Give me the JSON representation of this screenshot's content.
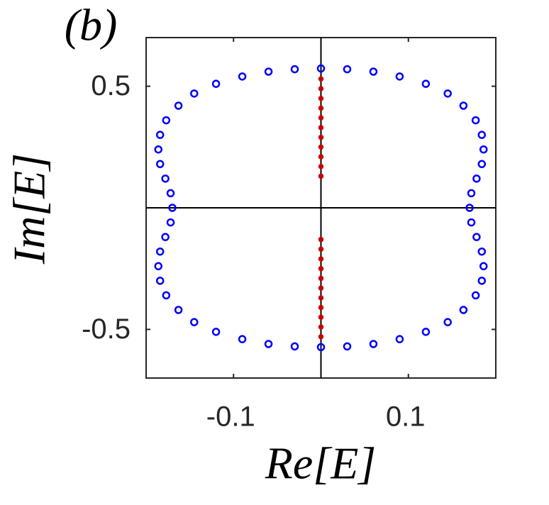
{
  "chart_data": {
    "type": "scatter",
    "label": "(b)",
    "x_label": "Re[E]",
    "y_label": "Im[E]",
    "xlim": [
      -0.2,
      0.2
    ],
    "ylim": [
      -0.7,
      0.7
    ],
    "xticks": [
      -0.1,
      0.1
    ],
    "yticks": [
      -0.5,
      0.5
    ],
    "zero_lines": true,
    "series": [
      {
        "color": "#0000ff",
        "marker": "open",
        "x": [
          0,
          0.03,
          0.06,
          0.09,
          0.12,
          0.145,
          0.163,
          0.177,
          0.184,
          0.186,
          0.184,
          0.178,
          0.172,
          0.17,
          0.172,
          0.178,
          0.184,
          0.186,
          0.184,
          0.177,
          0.163,
          0.145,
          0.12,
          0.09,
          0.06,
          0.03,
          0,
          -0.03,
          -0.06,
          -0.09,
          -0.12,
          -0.145,
          -0.163,
          -0.177,
          -0.184,
          -0.186,
          -0.184,
          -0.178,
          -0.172,
          -0.17,
          -0.172,
          -0.178,
          -0.184,
          -0.186,
          -0.184,
          -0.177,
          -0.163,
          -0.145,
          -0.12,
          -0.09,
          -0.06,
          -0.03
        ],
        "y": [
          0.573,
          0.57,
          0.56,
          0.54,
          0.51,
          0.47,
          0.42,
          0.36,
          0.3,
          0.24,
          0.18,
          0.12,
          0.06,
          0,
          -0.06,
          -0.12,
          -0.18,
          -0.24,
          -0.3,
          -0.36,
          -0.42,
          -0.47,
          -0.51,
          -0.54,
          -0.56,
          -0.57,
          -0.573,
          -0.57,
          -0.56,
          -0.54,
          -0.51,
          -0.47,
          -0.42,
          -0.36,
          -0.3,
          -0.24,
          -0.18,
          -0.12,
          -0.06,
          0,
          0.06,
          0.12,
          0.18,
          0.24,
          0.3,
          0.36,
          0.42,
          0.47,
          0.51,
          0.54,
          0.56,
          0.57
        ]
      },
      {
        "color": "#cc0000",
        "marker": "filled",
        "x": [
          0,
          0,
          0,
          0,
          0,
          0,
          0,
          0,
          0,
          0,
          0,
          0,
          0,
          0,
          0,
          0,
          0,
          0,
          0,
          0,
          0,
          0
        ],
        "y": [
          0.13,
          0.17,
          0.21,
          0.25,
          0.29,
          0.33,
          0.37,
          0.41,
          0.45,
          0.49,
          0.53,
          -0.13,
          -0.17,
          -0.21,
          -0.25,
          -0.29,
          -0.33,
          -0.37,
          -0.41,
          -0.45,
          -0.49,
          -0.53
        ]
      }
    ]
  }
}
